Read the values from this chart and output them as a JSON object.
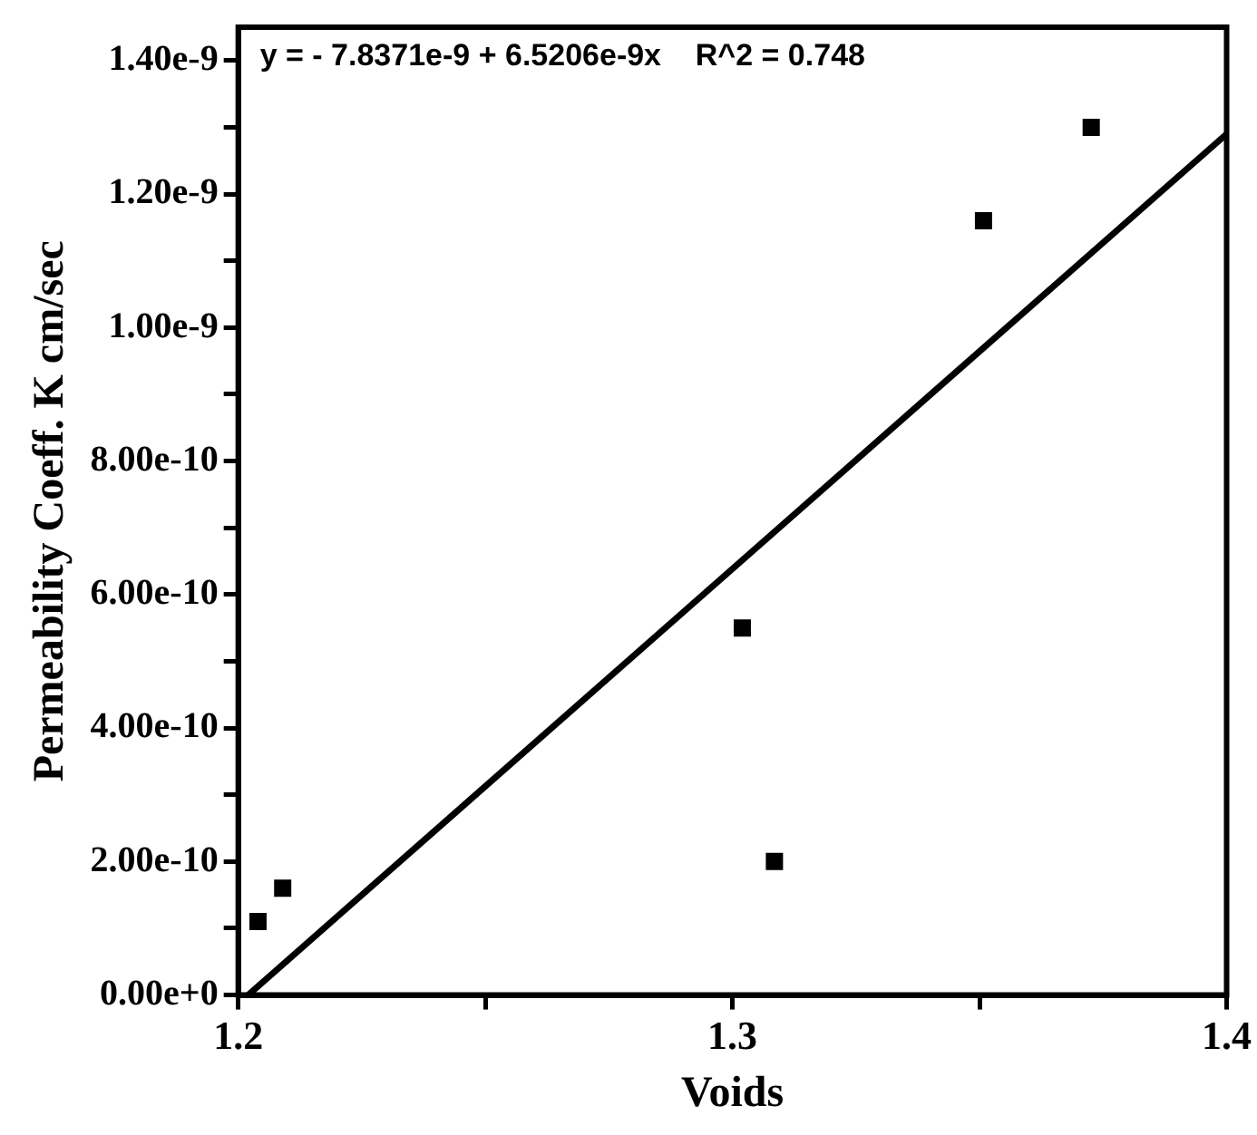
{
  "chart_data": {
    "type": "scatter",
    "xlabel": "Voids",
    "ylabel": "Permeability Coeff. K cm/sec",
    "annotations": [
      "y = - 7.8371e-9 + 6.5206e-9x    R^2 = 0.748"
    ],
    "series": [
      {
        "type": "scatter",
        "color": "#000000",
        "x": [
          1.204,
          1.209,
          1.302,
          1.3085,
          1.3508,
          1.3726
        ],
        "values": [
          1.1e-10,
          1.6e-10,
          5.5e-10,
          2e-10,
          1.16e-09,
          1.3e-09
        ],
        "marker": "square"
      },
      {
        "type": "line",
        "color": "#000000",
        "x": [
          1.202,
          1.4
        ],
        "values": [
          0,
          1.29e-09
        ],
        "marker": "none",
        "line_style": "solid"
      }
    ],
    "xlim": [
      1.2,
      1.4
    ],
    "xticks": [
      1.2,
      {
        "value": 1.25,
        "label": null
      },
      1.3,
      {
        "value": 1.35,
        "label": null
      },
      1.4
    ],
    "ylim": [
      0,
      1.45e-09
    ],
    "yticks": [
      {
        "value": 0,
        "label": "0.00e+0"
      },
      {
        "value": 1e-10,
        "label": null
      },
      {
        "value": 2e-10,
        "label": "2.00e-10"
      },
      {
        "value": 3e-10,
        "label": null
      },
      {
        "value": 4e-10,
        "label": "4.00e-10"
      },
      {
        "value": 5e-10,
        "label": null
      },
      {
        "value": 6e-10,
        "label": "6.00e-10"
      },
      {
        "value": 7e-10,
        "label": null
      },
      {
        "value": 8e-10,
        "label": "8.00e-10"
      },
      {
        "value": 9e-10,
        "label": null
      },
      {
        "value": 1e-09,
        "label": "1.00e-9"
      },
      {
        "value": 1.1e-09,
        "label": null
      },
      {
        "value": 1.2e-09,
        "label": "1.20e-9"
      },
      {
        "value": 1.3e-09,
        "label": null
      },
      {
        "value": 1.4e-09,
        "label": "1.40e-9"
      }
    ],
    "grid": false,
    "legend": false
  }
}
